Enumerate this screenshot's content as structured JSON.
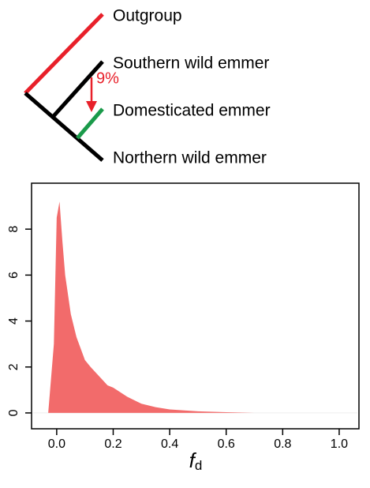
{
  "tree": {
    "taxa": [
      "Outgroup",
      "Southern wild emmer",
      "Domesticated emmer",
      "Northern wild emmer"
    ],
    "introgression": "9%"
  },
  "chart_data": {
    "type": "area",
    "x_label": "f",
    "x_label_subscript": "d",
    "x": [
      -0.03,
      -0.01,
      0.0,
      0.01,
      0.02,
      0.03,
      0.05,
      0.07,
      0.1,
      0.12,
      0.15,
      0.18,
      0.2,
      0.25,
      0.3,
      0.35,
      0.4,
      0.5,
      0.6,
      0.7
    ],
    "values": [
      0,
      3,
      8.5,
      9.2,
      7.5,
      6.0,
      4.3,
      3.3,
      2.3,
      2.0,
      1.6,
      1.2,
      1.1,
      0.7,
      0.4,
      0.25,
      0.15,
      0.07,
      0.03,
      0
    ],
    "color": "#f26b6b",
    "xlim": [
      -0.089,
      1.07
    ],
    "ylim": [
      -0.69,
      10
    ],
    "xticks": [
      {
        "value": 0,
        "label": "0.0"
      },
      0.2,
      0.4,
      0.6,
      0.8,
      {
        "value": 1,
        "label": "1.0"
      }
    ],
    "yticks": [
      0,
      2,
      4,
      6,
      8
    ]
  }
}
